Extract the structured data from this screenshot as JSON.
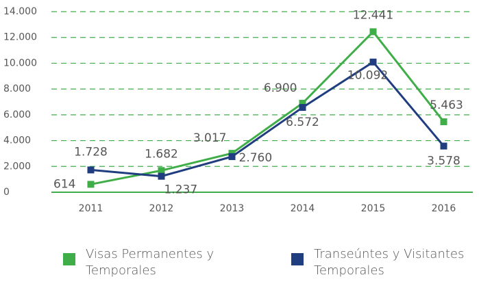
{
  "chart_data": {
    "type": "line",
    "categories": [
      "2011",
      "2012",
      "2013",
      "2014",
      "2015",
      "2016"
    ],
    "series": [
      {
        "name": "Visas Permanentes y Temporales",
        "color": "#3fae49",
        "values": [
          614,
          1682,
          3017,
          6900,
          12441,
          5463
        ],
        "value_labels": [
          "614",
          "1.682",
          "3.017",
          "6.900",
          "12.441",
          "5.463"
        ]
      },
      {
        "name": "Transeúntes y Visitantes Temporales",
        "color": "#1f3d7f",
        "values": [
          1728,
          1237,
          2760,
          6572,
          10092,
          3578
        ],
        "value_labels": [
          "1.728",
          "1.237",
          "2.760",
          "6.572",
          "10.092",
          "3.578"
        ]
      }
    ],
    "ylim": [
      0,
      14000
    ],
    "yticks": [
      0,
      {
        "value": 2000,
        "label": "2.000"
      },
      {
        "value": 4000,
        "label": "4.000"
      },
      {
        "value": 6000,
        "label": "6.000"
      },
      {
        "value": 8000,
        "label": "8.000"
      },
      {
        "value": 10000,
        "label": "10.000"
      },
      {
        "value": 12000,
        "label": "12.000"
      },
      {
        "value": 14000,
        "label": "14.000"
      }
    ],
    "grid": true
  }
}
